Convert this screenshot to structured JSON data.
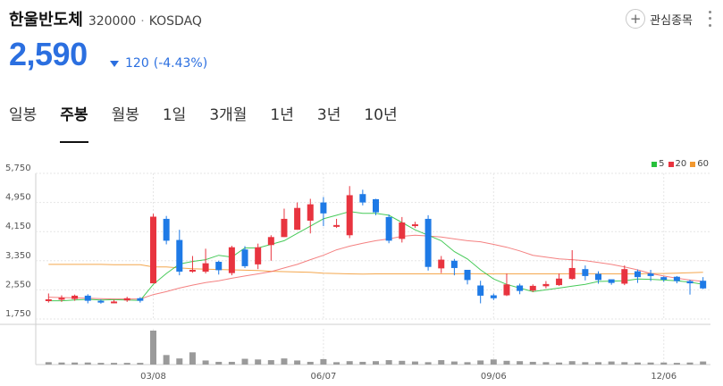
{
  "stock": {
    "name": "한울반도체",
    "code": "320000",
    "market": "KOSDAQ",
    "price": "2,590",
    "change": "120",
    "change_pct": "(-4.43%)",
    "watch_label": "관심종목"
  },
  "tabs": [
    {
      "label": "일봉",
      "active": false
    },
    {
      "label": "주봉",
      "active": true
    },
    {
      "label": "월봉",
      "active": false
    },
    {
      "label": "1일",
      "active": false
    },
    {
      "label": "3개월",
      "active": false
    },
    {
      "label": "1년",
      "active": false
    },
    {
      "label": "3년",
      "active": false
    },
    {
      "label": "10년",
      "active": false
    }
  ],
  "colors": {
    "up": "#e8343f",
    "down": "#1e7ae6",
    "price_blue": "#2b6fe0",
    "ma5": "#27c13c",
    "ma20": "#f26b6b",
    "ma60": "#f2982f",
    "volume": "#9a9a9a"
  },
  "chart_data": {
    "type": "candlestick",
    "legend": [
      "5",
      "20",
      "60"
    ],
    "y_ticks": [
      1750,
      2550,
      3350,
      4150,
      4950,
      5750
    ],
    "y_tick_labels": [
      "1,750",
      "2,550",
      "3,350",
      "4,150",
      "4,950",
      "5,750"
    ],
    "ylim": [
      1750,
      5750
    ],
    "x_labels": [
      "03/08",
      "06/07",
      "09/06",
      "12/06"
    ],
    "x_label_index": [
      8,
      21,
      34,
      47
    ],
    "candles": [
      [
        2245,
        2290,
        2450,
        2200
      ],
      [
        2280,
        2330,
        2400,
        2220
      ],
      [
        2300,
        2390,
        2420,
        2250
      ],
      [
        2390,
        2250,
        2430,
        2180
      ],
      [
        2250,
        2210,
        2290,
        2170
      ],
      [
        2200,
        2230,
        2280,
        2180
      ],
      [
        2260,
        2320,
        2360,
        2220
      ],
      [
        2320,
        2250,
        2350,
        2200
      ],
      [
        2730,
        4560,
        4640,
        2730
      ],
      [
        4500,
        3900,
        4580,
        3800
      ],
      [
        3920,
        3050,
        4200,
        2950
      ],
      [
        3100,
        3100,
        3480,
        3020
      ],
      [
        3050,
        3280,
        3680,
        3000
      ],
      [
        3320,
        3090,
        3350,
        2970
      ],
      [
        3010,
        3720,
        3760,
        2950
      ],
      [
        3660,
        3200,
        3750,
        3150
      ],
      [
        3250,
        3720,
        3820,
        3120
      ],
      [
        3780,
        4000,
        4050,
        3350
      ],
      [
        4000,
        4500,
        4780,
        4000
      ],
      [
        4200,
        4800,
        4950,
        4200
      ],
      [
        4450,
        4900,
        5050,
        4100
      ],
      [
        4950,
        4650,
        5100,
        4300
      ],
      [
        4330,
        4330,
        4500,
        4250
      ],
      [
        4050,
        5150,
        5400,
        3970
      ],
      [
        5180,
        4950,
        5300,
        4870
      ],
      [
        5040,
        4680,
        5050,
        4600
      ],
      [
        4550,
        3900,
        4620,
        3830
      ],
      [
        3950,
        4400,
        4550,
        3850
      ],
      [
        4350,
        4350,
        4420,
        4250
      ],
      [
        4500,
        3180,
        4600,
        3080
      ],
      [
        3140,
        3380,
        3480,
        3010
      ],
      [
        3350,
        3150,
        3400,
        2950
      ],
      [
        3100,
        2820,
        3100,
        2700
      ],
      [
        2670,
        2390,
        2800,
        2180
      ],
      [
        2400,
        2320,
        2450,
        2270
      ],
      [
        2400,
        2700,
        3000,
        2380
      ],
      [
        2670,
        2520,
        2720,
        2430
      ],
      [
        2530,
        2660,
        2700,
        2490
      ],
      [
        2650,
        2710,
        2790,
        2590
      ],
      [
        2680,
        2860,
        3000,
        2660
      ],
      [
        2850,
        3150,
        3640,
        2830
      ],
      [
        3120,
        2930,
        3220,
        2810
      ],
      [
        2990,
        2820,
        3060,
        2720
      ],
      [
        2840,
        2740,
        2810,
        2690
      ],
      [
        2720,
        3120,
        3220,
        2680
      ],
      [
        3060,
        2900,
        3110,
        2740
      ],
      [
        3000,
        2930,
        3100,
        2790
      ],
      [
        2900,
        2830,
        2920,
        2770
      ],
      [
        2910,
        2790,
        2930,
        2730
      ],
      [
        2790,
        2730,
        2830,
        2420
      ],
      [
        2800,
        2590,
        2900,
        2570
      ]
    ],
    "volume": [
      0.07,
      0.06,
      0.06,
      0.06,
      0.05,
      0.05,
      0.05,
      0.05,
      1.0,
      0.28,
      0.18,
      0.36,
      0.12,
      0.08,
      0.08,
      0.17,
      0.15,
      0.13,
      0.18,
      0.12,
      0.08,
      0.16,
      0.07,
      0.1,
      0.08,
      0.1,
      0.13,
      0.11,
      0.09,
      0.07,
      0.13,
      0.09,
      0.07,
      0.12,
      0.15,
      0.11,
      0.1,
      0.08,
      0.07,
      0.06,
      0.1,
      0.07,
      0.07,
      0.09,
      0.07,
      0.06,
      0.06,
      0.06,
      0.05,
      0.06,
      0.09
    ],
    "ma5": [
      2250,
      2250,
      2270,
      2290,
      2270,
      2280,
      2270,
      2260,
      2700,
      3000,
      3260,
      3330,
      3380,
      3500,
      3450,
      3700,
      3700,
      3800,
      3900,
      4100,
      4300,
      4500,
      4600,
      4700,
      4650,
      4650,
      4600,
      4400,
      4200,
      4050,
      3900,
      3600,
      3400,
      3100,
      2850,
      2700,
      2600,
      2500,
      2550,
      2600,
      2650,
      2700,
      2780,
      2790,
      2800,
      2850,
      2840,
      2820,
      2800,
      2760,
      2700
    ],
    "ma20": [
      2350,
      2340,
      2330,
      2320,
      2310,
      2300,
      2300,
      2300,
      2420,
      2500,
      2600,
      2680,
      2750,
      2800,
      2870,
      2930,
      2990,
      3050,
      3150,
      3250,
      3380,
      3500,
      3650,
      3750,
      3830,
      3900,
      3950,
      4020,
      4050,
      4030,
      4000,
      3950,
      3900,
      3870,
      3800,
      3720,
      3620,
      3500,
      3450,
      3400,
      3380,
      3350,
      3300,
      3250,
      3180,
      3100,
      3000,
      2930,
      2870,
      2820,
      2780
    ],
    "ma60": [
      3250,
      3250,
      3250,
      3250,
      3250,
      3240,
      3240,
      3240,
      3180,
      3180,
      3150,
      3130,
      3120,
      3110,
      3100,
      3090,
      3080,
      3060,
      3050,
      3040,
      3030,
      3010,
      3000,
      2990,
      2985,
      2990,
      2990,
      2990,
      2990,
      2990,
      2990,
      2990,
      2995,
      2990,
      2990,
      2990,
      2990,
      2990,
      2990,
      2990,
      2995,
      2995,
      2990,
      2990,
      2990,
      2990,
      3000,
      3000,
      3010,
      3020,
      3030
    ]
  }
}
